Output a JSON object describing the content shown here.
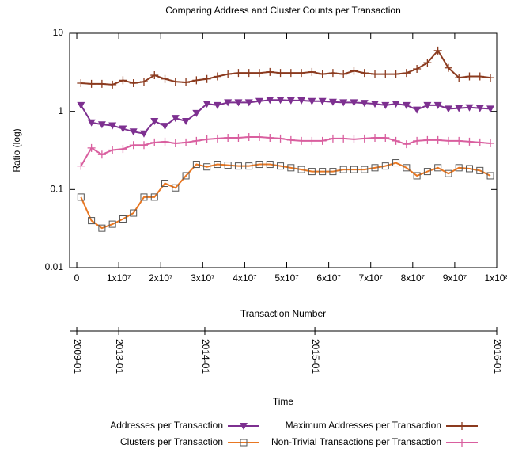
{
  "chart_data": {
    "type": "line",
    "title": "Comparing Address and Cluster Counts per Transaction",
    "y_label": "Ratio (log)",
    "x_label": "Transaction Number",
    "time_label": "Time",
    "log_y": true,
    "ylim": [
      0.01,
      10
    ],
    "yticks": [
      0.01,
      0.1,
      1,
      10
    ],
    "xlim": [
      -1700000,
      100000000
    ],
    "xticks": [
      0,
      {
        "value": 10000000,
        "label": "1x10⁷"
      },
      {
        "value": 20000000,
        "label": "2x10⁷"
      },
      {
        "value": 30000000,
        "label": "3x10⁷"
      },
      {
        "value": 40000000,
        "label": "4x10⁷"
      },
      {
        "value": 50000000,
        "label": "5x10⁷"
      },
      {
        "value": 60000000,
        "label": "6x10⁷"
      },
      {
        "value": 70000000,
        "label": "7x10⁷"
      },
      {
        "value": 80000000,
        "label": "8x10⁷"
      },
      {
        "value": 90000000,
        "label": "9x10⁷"
      },
      {
        "value": 100000000,
        "label": "1x10⁸"
      }
    ],
    "time_ticks": [
      {
        "value": 0,
        "label": "2009-01"
      },
      {
        "value": 10000000,
        "label": "2013-01"
      },
      {
        "value": 30500000,
        "label": "2014-01"
      },
      {
        "value": 56700000,
        "label": "2015-01"
      },
      {
        "value": 100000000,
        "label": "2016-01"
      }
    ],
    "x": [
      1000000,
      3500000,
      6000000,
      8500000,
      11000000,
      13500000,
      16000000,
      18500000,
      21000000,
      23500000,
      26000000,
      28500000,
      31000000,
      33500000,
      36000000,
      38500000,
      41000000,
      43500000,
      46000000,
      48500000,
      51000000,
      53500000,
      56000000,
      58500000,
      61000000,
      63500000,
      66000000,
      68500000,
      71000000,
      73500000,
      76000000,
      78500000,
      81000000,
      83500000,
      86000000,
      88500000,
      91000000,
      93500000,
      96000000,
      98500000
    ],
    "series": [
      {
        "name": "Addresses per Transaction",
        "color": "#7d3090",
        "marker": "triangle-down",
        "values": [
          1.2,
          0.72,
          0.68,
          0.66,
          0.6,
          0.55,
          0.52,
          0.75,
          0.65,
          0.82,
          0.75,
          0.95,
          1.25,
          1.2,
          1.3,
          1.3,
          1.3,
          1.35,
          1.4,
          1.4,
          1.38,
          1.38,
          1.35,
          1.35,
          1.32,
          1.3,
          1.3,
          1.28,
          1.25,
          1.2,
          1.25,
          1.2,
          1.05,
          1.2,
          1.2,
          1.08,
          1.1,
          1.12,
          1.1,
          1.08
        ]
      },
      {
        "name": "Clusters per Transaction",
        "color": "#e87722",
        "marker": "square",
        "values": [
          0.08,
          0.04,
          0.032,
          0.036,
          0.042,
          0.05,
          0.08,
          0.08,
          0.12,
          0.105,
          0.15,
          0.21,
          0.195,
          0.21,
          0.205,
          0.2,
          0.2,
          0.21,
          0.21,
          0.2,
          0.19,
          0.18,
          0.17,
          0.17,
          0.17,
          0.18,
          0.18,
          0.18,
          0.19,
          0.2,
          0.22,
          0.19,
          0.15,
          0.17,
          0.19,
          0.16,
          0.19,
          0.185,
          0.175,
          0.15
        ]
      },
      {
        "name": "Maximum Addresses per Transaction",
        "color": "#8b3a1e",
        "marker": "plus",
        "values": [
          2.3,
          2.25,
          2.25,
          2.2,
          2.5,
          2.3,
          2.4,
          2.9,
          2.6,
          2.4,
          2.35,
          2.5,
          2.6,
          2.8,
          3.0,
          3.1,
          3.1,
          3.1,
          3.2,
          3.1,
          3.1,
          3.1,
          3.2,
          3.0,
          3.1,
          3.0,
          3.3,
          3.1,
          3.0,
          3.0,
          3.0,
          3.1,
          3.5,
          4.2,
          6.0,
          3.6,
          2.7,
          2.8,
          2.8,
          2.7
        ]
      },
      {
        "name": "Non-Trivial Transactions per Transaction",
        "color": "#d95f9f",
        "marker": "plus",
        "values": [
          0.2,
          0.34,
          0.28,
          0.32,
          0.33,
          0.37,
          0.37,
          0.4,
          0.41,
          0.39,
          0.4,
          0.42,
          0.44,
          0.45,
          0.46,
          0.46,
          0.47,
          0.47,
          0.46,
          0.45,
          0.43,
          0.42,
          0.42,
          0.42,
          0.45,
          0.45,
          0.44,
          0.45,
          0.46,
          0.46,
          0.42,
          0.38,
          0.42,
          0.43,
          0.43,
          0.42,
          0.42,
          0.41,
          0.4,
          0.39
        ]
      }
    ]
  }
}
